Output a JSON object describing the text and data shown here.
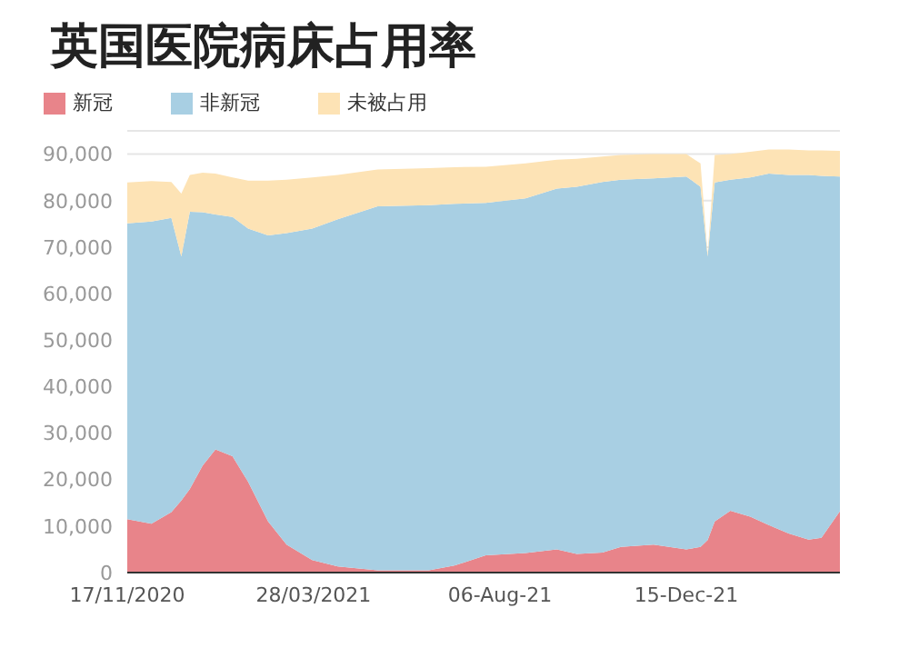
{
  "chart_data": {
    "type": "area",
    "title": "英国医院病床占用率",
    "stacked": true,
    "x": [
      "2020-11-17",
      "2020-12-04",
      "2020-12-18",
      "2020-12-25",
      "2020-12-31",
      "2021-01-09",
      "2021-01-18",
      "2021-01-30",
      "2021-02-10",
      "2021-02-24",
      "2021-03-09",
      "2021-03-27",
      "2021-04-14",
      "2021-05-12",
      "2021-06-17",
      "2021-07-05",
      "2021-07-27",
      "2021-08-24",
      "2021-09-15",
      "2021-09-29",
      "2021-10-17",
      "2021-10-30",
      "2021-11-22",
      "2021-12-15",
      "2021-12-25",
      "2021-12-30",
      "2022-01-04",
      "2022-01-15",
      "2022-01-29",
      "2022-02-11",
      "2022-02-25",
      "2022-03-11",
      "2022-03-20",
      "2022-04-02"
    ],
    "series": [
      {
        "name": "新冠",
        "color": "#e8848a",
        "values": [
          11500,
          10500,
          13000,
          15500,
          18000,
          23000,
          26500,
          25000,
          19500,
          11000,
          6000,
          2700,
          1300,
          500,
          500,
          1500,
          3700,
          4200,
          5000,
          4000,
          4300,
          5500,
          6000,
          5000,
          5500,
          7000,
          11000,
          13300,
          12000,
          10200,
          8400,
          7100,
          7500,
          13200
        ]
      },
      {
        "name": "非新冠",
        "color": "#a8cfe3",
        "values": [
          63600,
          65000,
          63300,
          52500,
          59600,
          54500,
          50500,
          51500,
          54500,
          61500,
          67000,
          71300,
          74700,
          78300,
          78500,
          77800,
          75800,
          76300,
          77600,
          79000,
          79700,
          79000,
          78800,
          80200,
          77500,
          61000,
          72900,
          71200,
          73000,
          75600,
          77100,
          78400,
          77800,
          72000
        ]
      },
      {
        "name": "未被占用",
        "color": "#fde3b5",
        "values": [
          8800,
          8700,
          7700,
          13500,
          7900,
          8500,
          8800,
          8500,
          10300,
          11800,
          11500,
          11000,
          9500,
          7900,
          8000,
          7900,
          7800,
          7500,
          6200,
          6000,
          5500,
          5300,
          5200,
          4800,
          5000,
          500,
          5900,
          5500,
          5500,
          5200,
          5500,
          5300,
          5500,
          5500
        ]
      }
    ],
    "xlim": [
      "2020-11-17",
      "2022-04-02"
    ],
    "xticks": [
      {
        "value": "2020-11-17",
        "label": "17/11/2020"
      },
      {
        "value": "2021-03-28",
        "label": "28/03/2021"
      },
      {
        "value": "2021-08-06",
        "label": "06-Aug-21"
      },
      {
        "value": "2021-12-15",
        "label": "15-Dec-21"
      }
    ],
    "ylim": [
      0,
      95000
    ],
    "yticks": [
      {
        "value": 0,
        "label": "0"
      },
      {
        "value": 10000,
        "label": "10,000"
      },
      {
        "value": 20000,
        "label": "20,000"
      },
      {
        "value": 30000,
        "label": "30,000"
      },
      {
        "value": 40000,
        "label": "40,000"
      },
      {
        "value": 50000,
        "label": "50,000"
      },
      {
        "value": 60000,
        "label": "60,000"
      },
      {
        "value": 70000,
        "label": "70,000"
      },
      {
        "value": 80000,
        "label": "80,000"
      },
      {
        "value": 90000,
        "label": "90,000"
      }
    ],
    "grid": "y",
    "legend": "top left"
  }
}
